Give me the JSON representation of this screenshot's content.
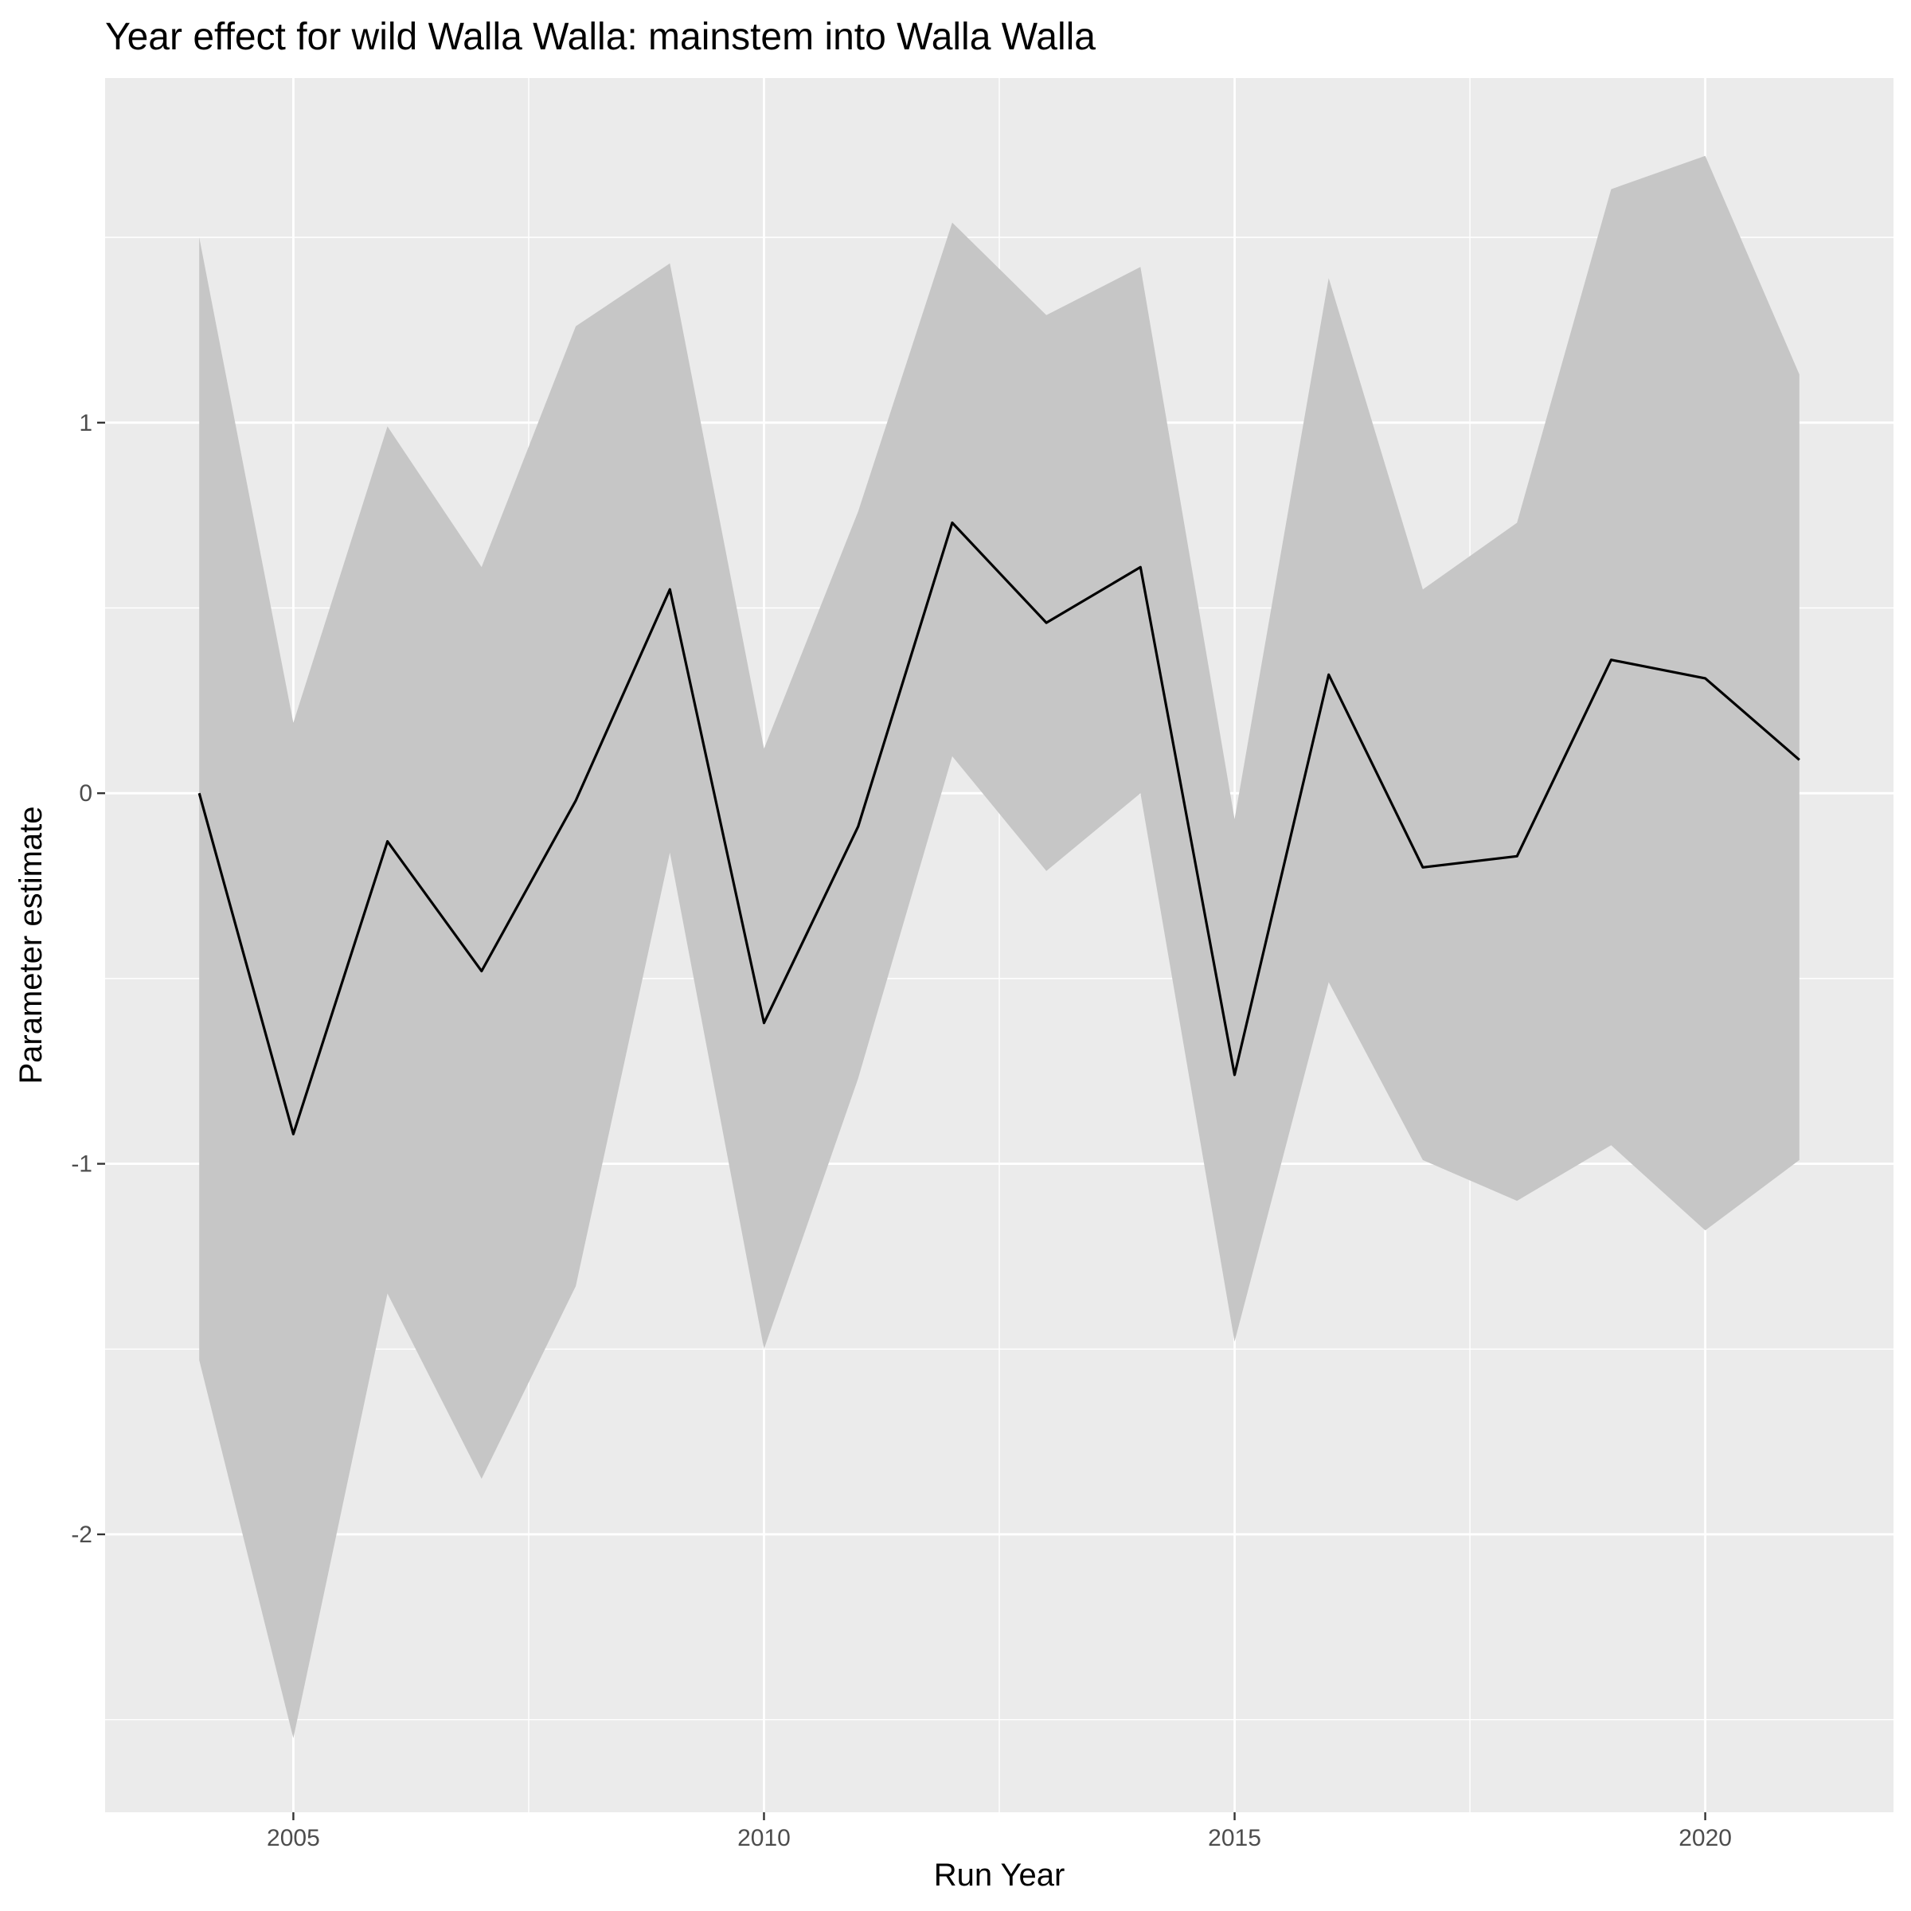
{
  "chart_data": {
    "type": "line",
    "title": "Year effect for wild Walla Walla: mainstem into Walla Walla",
    "xlabel": "Run Year",
    "ylabel": "Parameter estimate",
    "xlim": [
      2003,
      2022
    ],
    "ylim": [
      -2.75,
      1.93
    ],
    "x_ticks": [
      2005,
      2010,
      2015,
      2020
    ],
    "y_ticks": [
      -2,
      -1,
      0,
      1
    ],
    "x_tick_labels": [
      "2005",
      "2010",
      "2015",
      "2020"
    ],
    "y_tick_labels": [
      "-2",
      "-1",
      "0",
      "1"
    ],
    "grid": true,
    "legend": "none",
    "colors": {
      "panel": "#ebebeb",
      "grid": "#ffffff",
      "ribbon": "#c6c6c6",
      "line": "#000000",
      "tick": "#333333"
    },
    "series": [
      {
        "x": [
          2004,
          2005,
          2006,
          2007,
          2008,
          2009,
          2010,
          2011,
          2012,
          2013,
          2014,
          2015,
          2016,
          2017,
          2018,
          2019,
          2020,
          2021
        ],
        "values": [
          0.0,
          -0.92,
          -0.13,
          -0.48,
          -0.02,
          0.55,
          -0.62,
          -0.09,
          0.73,
          0.46,
          0.61,
          -0.76,
          0.32,
          -0.2,
          -0.17,
          0.36,
          0.31,
          0.09
        ],
        "lower": [
          -1.53,
          -2.55,
          -1.35,
          -1.85,
          -1.33,
          -0.16,
          -1.5,
          -0.77,
          0.1,
          -0.21,
          0.0,
          -1.48,
          -0.51,
          -0.99,
          -1.1,
          -0.95,
          -1.18,
          -0.99
        ],
        "upper": [
          1.5,
          0.19,
          0.99,
          0.61,
          1.26,
          1.43,
          0.12,
          0.76,
          1.54,
          1.29,
          1.42,
          -0.07,
          1.39,
          0.55,
          0.73,
          1.63,
          1.72,
          1.13
        ]
      }
    ]
  }
}
